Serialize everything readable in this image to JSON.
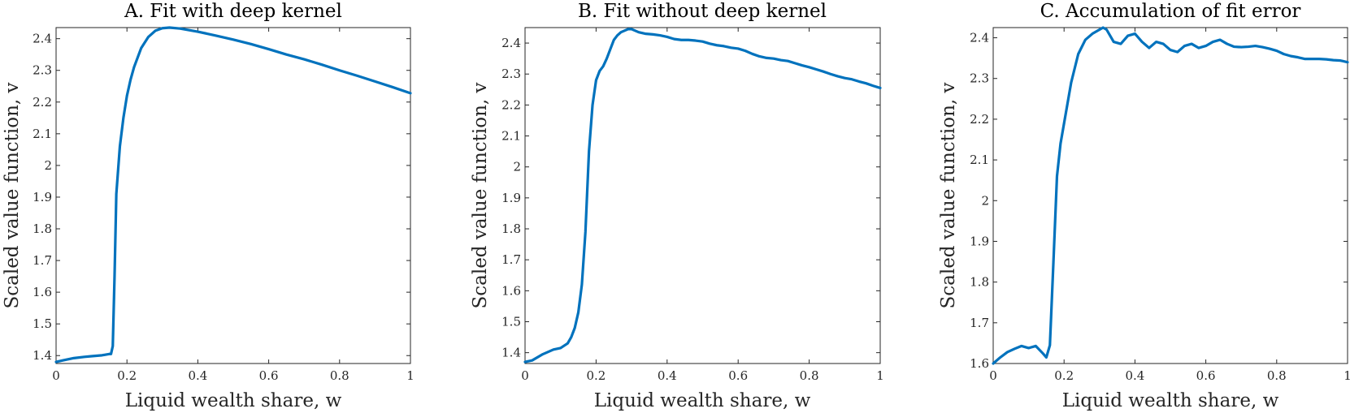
{
  "chart_data": [
    {
      "type": "line",
      "title": "A. Fit with deep kernel",
      "xlabel": "Liquid wealth share, w",
      "ylabel": "Scaled value function, v",
      "xlim": [
        0,
        1
      ],
      "ylim": [
        1.375,
        2.435
      ],
      "xticks": [
        0,
        0.2,
        0.4,
        0.6,
        0.8,
        1
      ],
      "xtick_labels": [
        "0",
        "0.2",
        "0.4",
        "0.6",
        "0.8",
        "1"
      ],
      "yticks": [
        1.4,
        1.5,
        1.6,
        1.7,
        1.8,
        1.9,
        2,
        2.1,
        2.2,
        2.3,
        2.4
      ],
      "ytick_labels": [
        "1.4",
        "1.5",
        "1.6",
        "1.7",
        "1.8",
        "1.9",
        "2",
        "2.1",
        "2.2",
        "2.3",
        "2.4"
      ],
      "color": "#0072BD",
      "series": [
        {
          "name": "v",
          "x": [
            0,
            0.02,
            0.05,
            0.08,
            0.1,
            0.13,
            0.15,
            0.155,
            0.16,
            0.165,
            0.17,
            0.18,
            0.19,
            0.2,
            0.21,
            0.22,
            0.24,
            0.26,
            0.28,
            0.3,
            0.32,
            0.35,
            0.4,
            0.45,
            0.5,
            0.55,
            0.6,
            0.65,
            0.7,
            0.75,
            0.8,
            0.85,
            0.9,
            0.95,
            1.0
          ],
          "y": [
            1.38,
            1.385,
            1.392,
            1.396,
            1.398,
            1.401,
            1.405,
            1.405,
            1.43,
            1.65,
            1.91,
            2.06,
            2.15,
            2.22,
            2.27,
            2.31,
            2.37,
            2.405,
            2.425,
            2.433,
            2.435,
            2.432,
            2.422,
            2.41,
            2.397,
            2.383,
            2.367,
            2.35,
            2.335,
            2.318,
            2.3,
            2.283,
            2.265,
            2.247,
            2.228
          ]
        }
      ]
    },
    {
      "type": "line",
      "title": "B. Fit without deep kernel",
      "xlabel": "Liquid wealth share, w",
      "ylabel": "Scaled value function, v",
      "xlim": [
        0,
        1
      ],
      "ylim": [
        1.365,
        2.45
      ],
      "xticks": [
        0,
        0.2,
        0.4,
        0.6,
        0.8,
        1
      ],
      "xtick_labels": [
        "0",
        "0.2",
        "0.4",
        "0.6",
        "0.8",
        "1"
      ],
      "yticks": [
        1.4,
        1.5,
        1.6,
        1.7,
        1.8,
        1.9,
        2,
        2.1,
        2.2,
        2.3,
        2.4
      ],
      "ytick_labels": [
        "1.4",
        "1.5",
        "1.6",
        "1.7",
        "1.8",
        "1.9",
        "2",
        "2.1",
        "2.2",
        "2.3",
        "2.4"
      ],
      "color": "#0072BD",
      "series": [
        {
          "name": "v",
          "x": [
            0,
            0.02,
            0.05,
            0.08,
            0.1,
            0.12,
            0.13,
            0.14,
            0.15,
            0.16,
            0.17,
            0.18,
            0.19,
            0.2,
            0.21,
            0.22,
            0.23,
            0.24,
            0.25,
            0.26,
            0.27,
            0.28,
            0.29,
            0.3,
            0.31,
            0.32,
            0.34,
            0.36,
            0.38,
            0.4,
            0.42,
            0.44,
            0.46,
            0.48,
            0.5,
            0.52,
            0.54,
            0.56,
            0.58,
            0.6,
            0.62,
            0.64,
            0.66,
            0.68,
            0.7,
            0.72,
            0.74,
            0.76,
            0.78,
            0.8,
            0.82,
            0.84,
            0.86,
            0.88,
            0.9,
            0.92,
            0.94,
            0.96,
            0.98,
            1.0
          ],
          "y": [
            1.37,
            1.375,
            1.395,
            1.41,
            1.415,
            1.43,
            1.45,
            1.48,
            1.53,
            1.62,
            1.79,
            2.05,
            2.2,
            2.28,
            2.31,
            2.325,
            2.35,
            2.38,
            2.41,
            2.425,
            2.435,
            2.44,
            2.445,
            2.445,
            2.44,
            2.435,
            2.43,
            2.428,
            2.425,
            2.42,
            2.413,
            2.41,
            2.41,
            2.408,
            2.405,
            2.398,
            2.393,
            2.39,
            2.385,
            2.382,
            2.375,
            2.365,
            2.357,
            2.352,
            2.35,
            2.345,
            2.342,
            2.335,
            2.328,
            2.322,
            2.315,
            2.308,
            2.3,
            2.293,
            2.287,
            2.283,
            2.276,
            2.27,
            2.262,
            2.255
          ]
        }
      ]
    },
    {
      "type": "line",
      "title": "C. Accumulation of fit error",
      "xlabel": "Liquid wealth share, w",
      "ylabel": "Scaled value function, v",
      "xlim": [
        0,
        1
      ],
      "ylim": [
        1.6,
        2.425
      ],
      "xticks": [
        0,
        0.2,
        0.4,
        0.6,
        0.8,
        1
      ],
      "xtick_labels": [
        "0",
        "0.2",
        "0.4",
        "0.6",
        "0.8",
        "1"
      ],
      "yticks": [
        1.6,
        1.7,
        1.8,
        1.9,
        2,
        2.1,
        2.2,
        2.3,
        2.4
      ],
      "ytick_labels": [
        "1.6",
        "1.7",
        "1.8",
        "1.9",
        "2",
        "2.1",
        "2.2",
        "2.3",
        "2.4"
      ],
      "color": "#0072BD",
      "series": [
        {
          "name": "v",
          "x": [
            0,
            0.02,
            0.04,
            0.06,
            0.08,
            0.1,
            0.12,
            0.14,
            0.15,
            0.16,
            0.17,
            0.18,
            0.19,
            0.2,
            0.22,
            0.24,
            0.26,
            0.28,
            0.3,
            0.31,
            0.32,
            0.34,
            0.36,
            0.38,
            0.4,
            0.42,
            0.44,
            0.46,
            0.48,
            0.5,
            0.52,
            0.54,
            0.56,
            0.58,
            0.6,
            0.62,
            0.64,
            0.66,
            0.68,
            0.7,
            0.72,
            0.74,
            0.76,
            0.78,
            0.8,
            0.82,
            0.84,
            0.86,
            0.88,
            0.9,
            0.92,
            0.94,
            0.96,
            0.98,
            1.0
          ],
          "y": [
            1.6,
            1.615,
            1.628,
            1.636,
            1.643,
            1.638,
            1.643,
            1.625,
            1.615,
            1.645,
            1.85,
            2.06,
            2.14,
            2.19,
            2.29,
            2.36,
            2.395,
            2.41,
            2.42,
            2.425,
            2.42,
            2.39,
            2.385,
            2.405,
            2.41,
            2.39,
            2.375,
            2.39,
            2.385,
            2.37,
            2.365,
            2.38,
            2.385,
            2.375,
            2.38,
            2.39,
            2.395,
            2.385,
            2.378,
            2.377,
            2.378,
            2.38,
            2.377,
            2.373,
            2.368,
            2.36,
            2.355,
            2.352,
            2.348,
            2.348,
            2.348,
            2.347,
            2.345,
            2.344,
            2.34
          ]
        }
      ]
    }
  ]
}
